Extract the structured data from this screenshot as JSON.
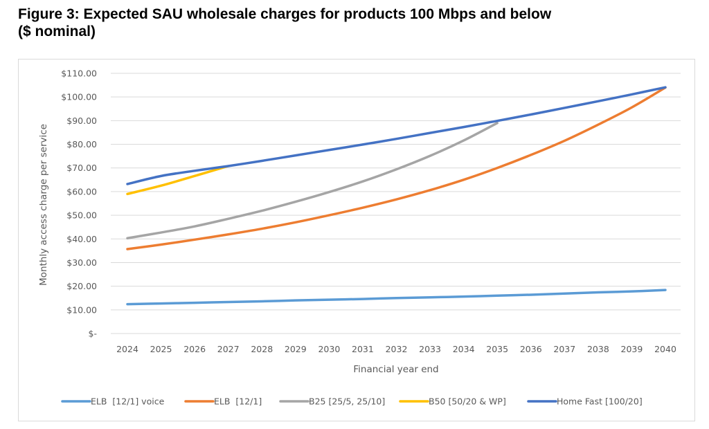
{
  "figure": {
    "title_line1": "Figure 3: Expected SAU wholesale charges for products 100 Mbps and below",
    "title_line2": "($ nominal)"
  },
  "chart_data": {
    "type": "line",
    "title": "Figure 3: Expected SAU wholesale charges for products 100 Mbps and below ($ nominal)",
    "xlabel": "Financial year end",
    "ylabel": "Monthly access charge per service",
    "x": [
      2024,
      2025,
      2026,
      2027,
      2028,
      2029,
      2030,
      2031,
      2032,
      2033,
      2034,
      2035,
      2036,
      2037,
      2038,
      2039,
      2040
    ],
    "ylim": [
      0,
      110
    ],
    "yticks": [
      0,
      10,
      20,
      30,
      40,
      50,
      60,
      70,
      80,
      90,
      100,
      110
    ],
    "ytick_labels": [
      "$-",
      "$10.00",
      "$20.00",
      "$30.00",
      "$40.00",
      "$50.00",
      "$60.00",
      "$70.00",
      "$80.00",
      "$90.00",
      "$100.00",
      "$110.00"
    ],
    "grid": true,
    "legend_position": "bottom",
    "series": [
      {
        "name": "ELB  [12/1] voice",
        "color": "#5B9BD5",
        "values": [
          12.4,
          12.7,
          13.0,
          13.3,
          13.6,
          14.0,
          14.3,
          14.6,
          15.0,
          15.3,
          15.6,
          16.0,
          16.4,
          16.9,
          17.4,
          17.8,
          18.4
        ]
      },
      {
        "name": "ELB  [12/1]",
        "color": "#ED7D31",
        "values": [
          35.7,
          37.6,
          39.7,
          41.9,
          44.3,
          47.0,
          50.0,
          53.2,
          56.7,
          60.6,
          65.0,
          70.0,
          75.5,
          81.5,
          88.3,
          95.6,
          104.0
        ]
      },
      {
        "name": "B25 [25/5, 25/10]",
        "color": "#A5A5A5",
        "values": [
          40.3,
          42.7,
          45.3,
          48.5,
          51.9,
          55.7,
          59.8,
          64.3,
          69.4,
          75.1,
          81.6,
          89.0,
          null,
          null,
          null,
          null,
          null
        ]
      },
      {
        "name": "B50 [50/20 & WP]",
        "color": "#FFC000",
        "values": [
          59.0,
          62.5,
          66.6,
          70.8,
          null,
          null,
          null,
          null,
          null,
          null,
          null,
          null,
          null,
          null,
          null,
          null,
          null
        ]
      },
      {
        "name": "Home Fast [100/20]",
        "color": "#4472C4",
        "values": [
          63.2,
          66.6,
          68.8,
          70.8,
          73.0,
          75.3,
          77.6,
          79.9,
          82.3,
          84.8,
          87.3,
          89.9,
          92.6,
          95.4,
          98.2,
          101.1,
          104.1
        ]
      }
    ]
  }
}
